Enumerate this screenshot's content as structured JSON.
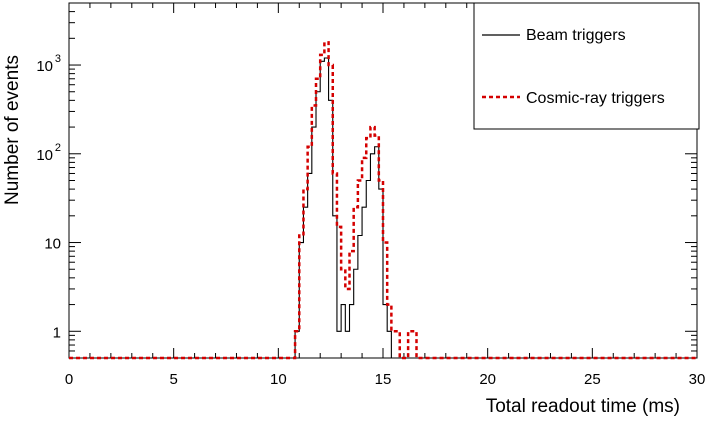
{
  "chart_data": {
    "type": "line",
    "title": "",
    "xlabel": "Total readout time (ms)",
    "ylabel": "Number of events",
    "xlim": [
      0,
      30
    ],
    "ylim": [
      0.5,
      5000
    ],
    "y_scale": "log",
    "grid": false,
    "legend_position": "top-right",
    "x_ticks": [
      0,
      5,
      10,
      15,
      20,
      25,
      30
    ],
    "y_ticks": [
      {
        "value": 1,
        "label": "1"
      },
      {
        "value": 10,
        "label": "10"
      },
      {
        "value": 100,
        "label": "10",
        "exp": "2"
      },
      {
        "value": 1000,
        "label": "10",
        "exp": "3"
      }
    ],
    "series": [
      {
        "name": "Beam triggers",
        "color": "#000000",
        "style": "solid",
        "x": [
          10.8,
          11.0,
          11.2,
          11.4,
          11.6,
          11.8,
          12.0,
          12.2,
          12.4,
          12.6,
          12.8,
          13.0,
          13.2,
          13.4,
          13.6,
          13.8,
          14.0,
          14.2,
          14.4,
          14.6,
          14.8,
          15.0,
          15.2
        ],
        "values": [
          1,
          10,
          25,
          60,
          200,
          500,
          1100,
          1200,
          400,
          20,
          1,
          2,
          1,
          2,
          5,
          12,
          25,
          50,
          100,
          120,
          40,
          2,
          1
        ]
      },
      {
        "name": "Cosmic-ray triggers",
        "color": "#d40000",
        "style": "dashed",
        "x": [
          10.8,
          11.0,
          11.2,
          11.4,
          11.6,
          11.8,
          12.0,
          12.2,
          12.4,
          12.6,
          12.8,
          13.0,
          13.2,
          13.4,
          13.6,
          13.8,
          14.0,
          14.2,
          14.4,
          14.6,
          14.8,
          15.0,
          15.2,
          15.4,
          15.6,
          16.2,
          16.4
        ],
        "values": [
          1,
          12,
          40,
          120,
          350,
          700,
          1300,
          1800,
          1000,
          60,
          15,
          5,
          3,
          8,
          25,
          50,
          90,
          150,
          200,
          160,
          50,
          10,
          2,
          1,
          1,
          1,
          1
        ]
      }
    ]
  }
}
